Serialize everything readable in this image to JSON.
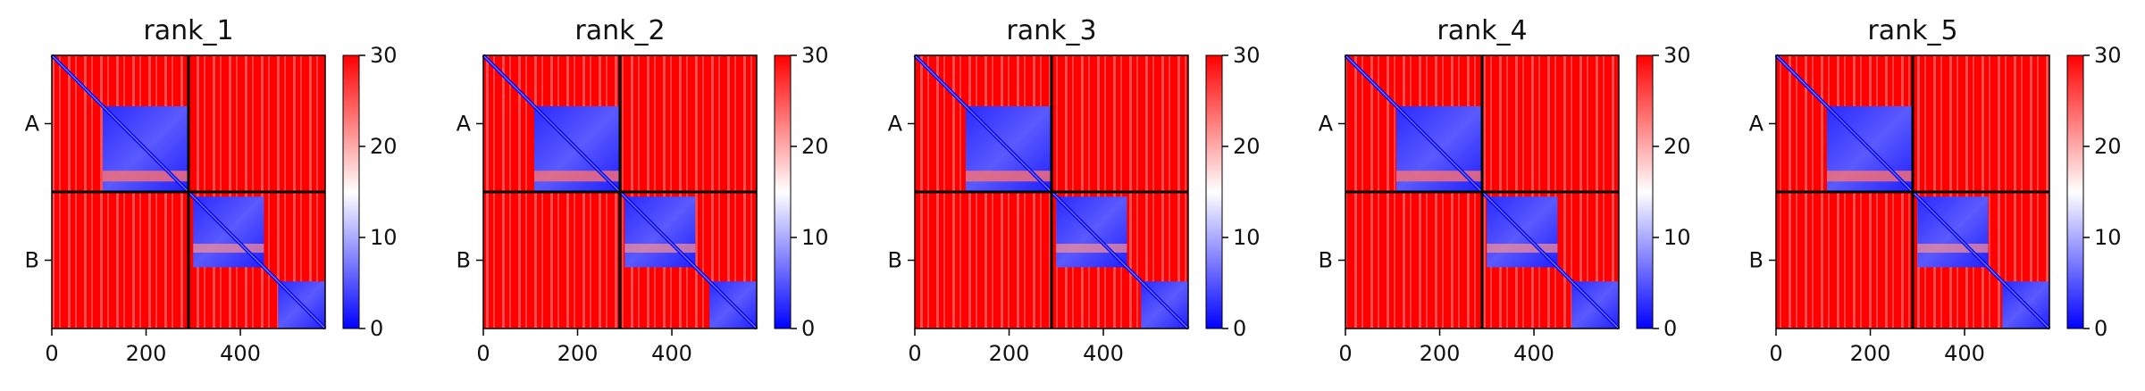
{
  "chart_data": {
    "type": "heatmap",
    "colormap": {
      "name": "bwr",
      "colors": [
        "#0000ff",
        "#ffffff",
        "#ff0000"
      ],
      "vmin": 0,
      "vmax": 30
    },
    "panels": [
      {
        "title": "rank_1"
      },
      {
        "title": "rank_2"
      },
      {
        "title": "rank_3"
      },
      {
        "title": "rank_4"
      },
      {
        "title": "rank_5"
      }
    ],
    "x_ticks": [
      "0",
      "200",
      "400"
    ],
    "x_tick_values": [
      0,
      200,
      400
    ],
    "xlim": [
      0,
      580
    ],
    "chain_labels": [
      "A",
      "B"
    ],
    "chain_boundary": 290,
    "colorbar_ticks": [
      "0",
      "10",
      "20",
      "30"
    ],
    "colorbar_tick_values": [
      0,
      10,
      20,
      30
    ],
    "grid": false
  }
}
